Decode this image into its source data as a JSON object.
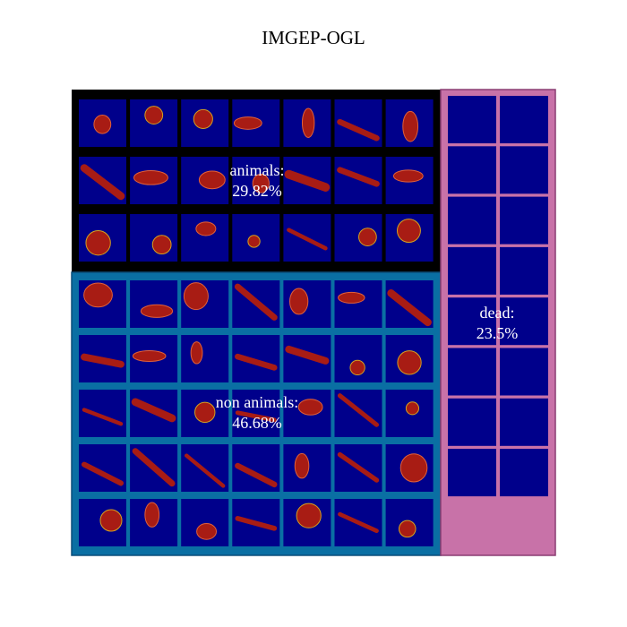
{
  "title": "IMGEP-OGL",
  "chart_data": {
    "type": "treemap",
    "title": "IMGEP-OGL",
    "categories": [
      {
        "name": "animals",
        "label": "animals:",
        "percent_text": "29.82%",
        "percent": 29.82,
        "color": "#000000",
        "rows": 3,
        "cols": 7
      },
      {
        "name": "non animals",
        "label": "non animals:",
        "percent_text": "46.68%",
        "percent": 46.68,
        "color": "#0a6fa3",
        "rows": 5,
        "cols": 7
      },
      {
        "name": "dead",
        "label": "dead:",
        "percent_text": "23.5%",
        "percent": 23.5,
        "color": "#c872a8",
        "rows": 8,
        "cols": 2
      }
    ],
    "tile_background": "#00008b",
    "pattern_color": "#a81c14"
  }
}
